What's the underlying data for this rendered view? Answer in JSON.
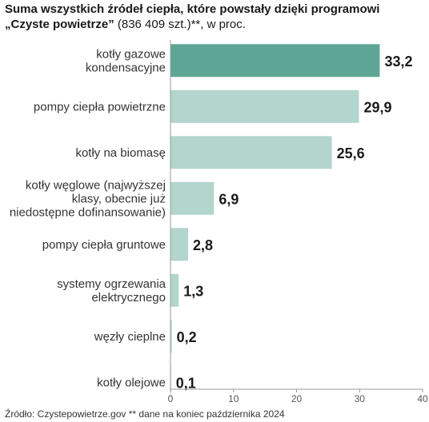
{
  "header": {
    "title": "Suma wszystkich źródeł ciepła, które powstały dzięki programowi",
    "subtitle_bold": "„Czyste powietrze”",
    "subtitle_rest": " (836 409 szt.)**, w proc."
  },
  "footer": {
    "source": "Źródło: Czystepowietrze.gov ** dane na koniec października 2024"
  },
  "colors": {
    "highlight": "#5fa595",
    "bar": "#b2d5cd",
    "axis": "#999999",
    "text": "#222222"
  },
  "chart_data": {
    "type": "bar",
    "orientation": "horizontal",
    "categories": [
      [
        "kotły gazowe",
        "kondensacyjne"
      ],
      [
        "pompy ciepła powietrzne"
      ],
      [
        "kotły na biomasę"
      ],
      [
        "kotły węglowe (najwyższej",
        "klasy, obecnie już",
        "niedostępne dofinansowanie)"
      ],
      [
        "pompy ciepła gruntowe"
      ],
      [
        "systemy ogrzewania",
        "elektrycznego"
      ],
      [
        "węzły cieplne"
      ],
      [
        "kotły olejowe"
      ]
    ],
    "values": [
      33.2,
      29.9,
      25.6,
      6.9,
      2.8,
      1.3,
      0.2,
      0.1
    ],
    "value_labels": [
      "33,2",
      "29,9",
      "25,6",
      "6,9",
      "2,8",
      "1,3",
      "0,2",
      "0,1"
    ],
    "highlight_index": 0,
    "xlim": [
      0,
      40
    ],
    "xticks": [
      0,
      10,
      20,
      30,
      40
    ],
    "xtick_labels": [
      "0",
      "10",
      "20",
      "30",
      "40"
    ],
    "grid": false,
    "legend": "none"
  }
}
